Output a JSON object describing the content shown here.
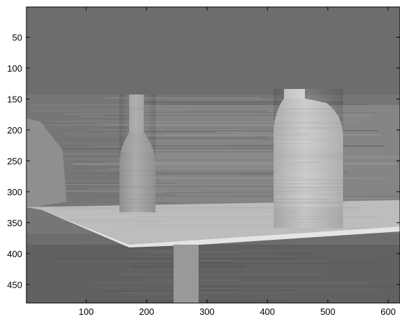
{
  "chart_data": {
    "type": "heatmap",
    "title": "",
    "xlabel": "",
    "ylabel": "",
    "colormap": "gray",
    "xlim": [
      1,
      620
    ],
    "ylim": [
      1,
      480
    ],
    "y_axis_direction": "top-down",
    "x_ticks": [
      100,
      200,
      300,
      400,
      500,
      600
    ],
    "y_ticks": [
      50,
      100,
      150,
      200,
      250,
      300,
      350,
      400,
      450
    ],
    "colors": {
      "background_far": "#6d6d6d",
      "wall_band": "#808080",
      "left_bottle": "#a4a4a4",
      "right_bottle": "#c8c8c8",
      "table_top": "#d2d2d2",
      "table_leg": "#9a9a9a",
      "floor": "#5e5e5e"
    }
  }
}
